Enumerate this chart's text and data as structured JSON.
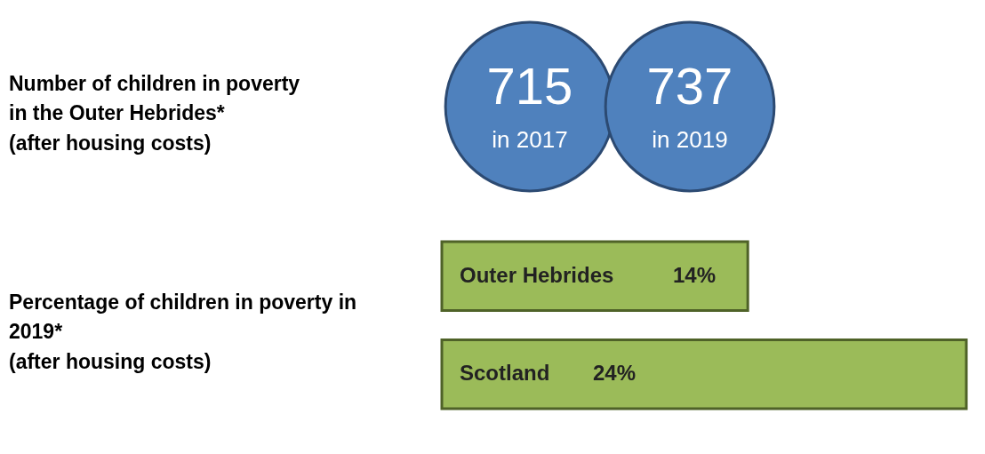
{
  "chart_data": [
    {
      "type": "other",
      "title": "Number of children in poverty\nin the Outer Hebrides*\n(after housing costs)",
      "categories": [
        "in 2017",
        "in 2019"
      ],
      "values": [
        715,
        737
      ],
      "data_labels": true,
      "color": "#4f81bd"
    },
    {
      "type": "bar",
      "orientation": "horizontal",
      "title": "Percentage of children in poverty in\n2019*\n(after housing costs)",
      "categories": [
        "Outer Hebrides",
        "Scotland"
      ],
      "values": [
        14,
        24
      ],
      "value_labels": [
        "14%",
        "24%"
      ],
      "color": "#9bbb59"
    }
  ]
}
